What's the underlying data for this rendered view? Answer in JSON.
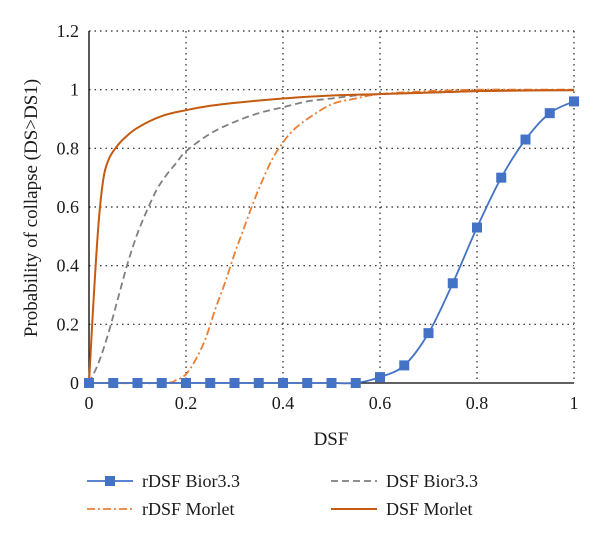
{
  "chart_data": {
    "type": "line",
    "xlabel": "DSF",
    "ylabel": "Probability of collapse (DS>DS1)",
    "xlim": [
      0,
      1
    ],
    "ylim": [
      0,
      1.2
    ],
    "x_ticks": [
      0,
      0.2,
      0.4,
      0.6,
      0.8,
      1
    ],
    "x_tick_labels": [
      "0",
      "0.2",
      "0.4",
      "0.6",
      "0.8",
      "1"
    ],
    "y_ticks": [
      0,
      0.2,
      0.4,
      0.6,
      0.8,
      1,
      1.2
    ],
    "y_tick_labels": [
      "0",
      "0.2",
      "0.4",
      "0.6",
      "0.8",
      "1",
      "1.2"
    ],
    "grid": "dotted",
    "legend_position": "bottom",
    "series": [
      {
        "name": "rDSF Bior3.3",
        "color": "#4472c4",
        "style": "solid-square-markers",
        "x": [
          0,
          0.05,
          0.1,
          0.15,
          0.2,
          0.25,
          0.3,
          0.35,
          0.4,
          0.45,
          0.5,
          0.55,
          0.6,
          0.65,
          0.7,
          0.75,
          0.8,
          0.85,
          0.9,
          0.95,
          1.0
        ],
        "y": [
          0,
          0,
          0,
          0,
          0,
          0,
          0,
          0,
          0,
          0,
          0,
          0,
          0.02,
          0.06,
          0.17,
          0.34,
          0.53,
          0.7,
          0.83,
          0.92,
          0.96
        ]
      },
      {
        "name": "DSF Bior3.3",
        "color": "#7f7f7f",
        "style": "dashed",
        "x": [
          0,
          0.02,
          0.04,
          0.06,
          0.08,
          0.1,
          0.12,
          0.14,
          0.16,
          0.18,
          0.2,
          0.25,
          0.3,
          0.35,
          0.4,
          0.45,
          0.5,
          0.55,
          0.6,
          0.7,
          0.8,
          0.9,
          1.0
        ],
        "y": [
          0,
          0.07,
          0.17,
          0.29,
          0.41,
          0.51,
          0.59,
          0.66,
          0.71,
          0.75,
          0.79,
          0.85,
          0.89,
          0.92,
          0.94,
          0.96,
          0.97,
          0.98,
          0.985,
          0.99,
          0.995,
          0.998,
          1.0
        ]
      },
      {
        "name": "rDSF Morlet",
        "color": "#ed7d31",
        "style": "dash-dot",
        "x": [
          0,
          0.15,
          0.18,
          0.2,
          0.22,
          0.24,
          0.26,
          0.28,
          0.3,
          0.32,
          0.34,
          0.36,
          0.38,
          0.4,
          0.42,
          0.45,
          0.5,
          0.55,
          0.6,
          0.7,
          0.8,
          0.9,
          1.0
        ],
        "y": [
          0,
          0,
          0.01,
          0.03,
          0.08,
          0.15,
          0.25,
          0.34,
          0.44,
          0.53,
          0.62,
          0.7,
          0.77,
          0.82,
          0.86,
          0.9,
          0.95,
          0.97,
          0.985,
          0.995,
          1.0,
          1.0,
          1.0
        ]
      },
      {
        "name": "DSF Morlet",
        "color": "#c55a11",
        "style": "solid",
        "x": [
          0,
          0.01,
          0.02,
          0.03,
          0.04,
          0.05,
          0.07,
          0.1,
          0.15,
          0.2,
          0.25,
          0.3,
          0.4,
          0.5,
          0.6,
          0.7,
          0.8,
          0.9,
          1.0
        ],
        "y": [
          0,
          0.3,
          0.55,
          0.7,
          0.76,
          0.79,
          0.83,
          0.87,
          0.91,
          0.93,
          0.945,
          0.955,
          0.97,
          0.98,
          0.985,
          0.99,
          0.995,
          0.997,
          0.998
        ]
      }
    ]
  }
}
